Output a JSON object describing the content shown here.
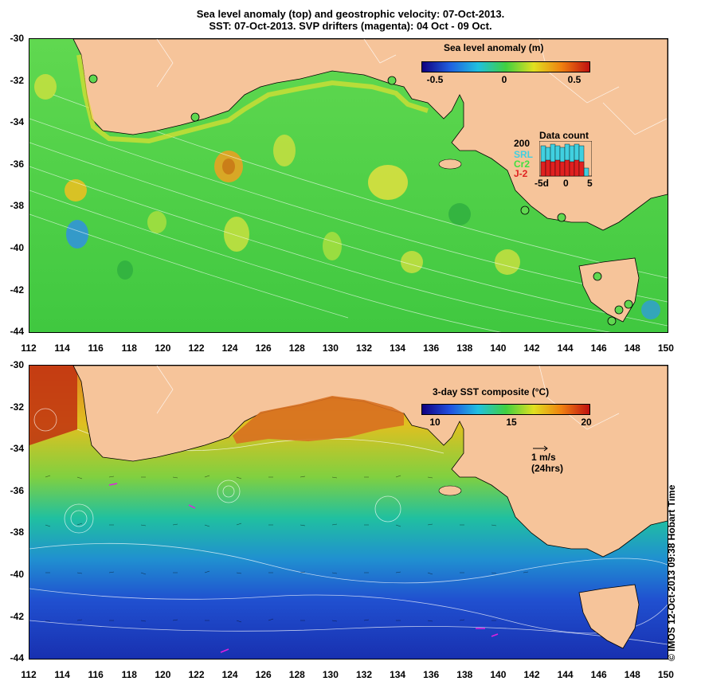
{
  "title_line1": "Sea level anomaly (top) and geostrophic velocity: 07-Oct-2013.",
  "title_line2": "SST: 07-Oct-2013. SVP drifters (magenta): 04 Oct - 09 Oct.",
  "y_ticks": [
    "-30",
    "-32",
    "-34",
    "-36",
    "-38",
    "-40",
    "-42",
    "-44"
  ],
  "x_ticks": [
    "112",
    "114",
    "116",
    "118",
    "120",
    "122",
    "124",
    "126",
    "128",
    "130",
    "132",
    "134",
    "136",
    "138",
    "140",
    "142",
    "144",
    "146",
    "148",
    "150"
  ],
  "top_panel": {
    "colorbar_title": "Sea level anomaly (m)",
    "colorbar_ticks": [
      "-0.5",
      "0",
      "0.5"
    ],
    "data_count": {
      "title": "Data count",
      "y_tick": "200",
      "x_ticks": [
        "-5d",
        "0",
        "5"
      ],
      "series": [
        {
          "name": "SRL",
          "color": "#40d0e0"
        },
        {
          "name": "Cr2",
          "color": "#40e040"
        },
        {
          "name": "J-2",
          "color": "#e02020"
        }
      ]
    }
  },
  "bottom_panel": {
    "colorbar_title": "3-day SST composite (°C)",
    "colorbar_ticks": [
      "10",
      "15",
      "20"
    ],
    "velocity_scale": "1 m/s",
    "velocity_scale_note": "(24hrs)"
  },
  "copyright": "© IMOS 12-Oct-2013 09:38 Hobart Time",
  "colors": {
    "land": "#f6c49a",
    "sla_green": "#40d040",
    "sst_blue": "#2040c0",
    "sst_orange": "#e08020"
  }
}
